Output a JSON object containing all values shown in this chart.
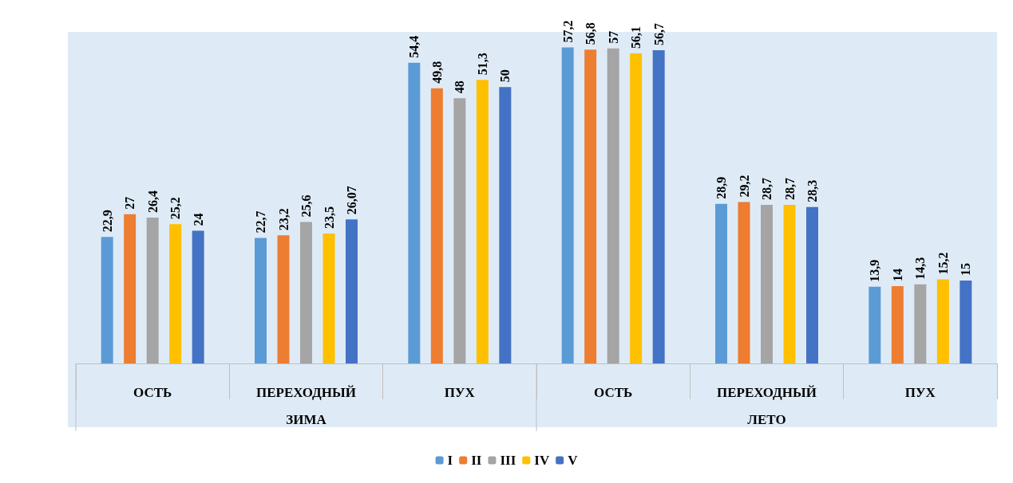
{
  "chart_data": {
    "type": "bar",
    "categories": [
      "ОСТЬ",
      "ПЕРЕХОДНЫЙ",
      "ПУХ",
      "ОСТЬ",
      "ПЕРЕХОДНЫЙ",
      "ПУХ"
    ],
    "annotations": [
      "ЗИМА",
      "ЛЕТО"
    ],
    "series": [
      {
        "name": "I",
        "color": "#5b9bd5",
        "values": [
          22.9,
          22.7,
          54.4,
          57.2,
          28.9,
          13.9
        ],
        "value_labels": [
          "22,9",
          "22,7",
          "54,4",
          "57,2",
          "28,9",
          "13,9"
        ]
      },
      {
        "name": "II",
        "color": "#ed7d31",
        "values": [
          27,
          23.2,
          49.8,
          56.8,
          29.2,
          14
        ],
        "value_labels": [
          "27",
          "23,2",
          "49,8",
          "56,8",
          "29,2",
          "14"
        ]
      },
      {
        "name": "III",
        "color": "#a5a5a5",
        "values": [
          26.4,
          25.6,
          48,
          57,
          28.7,
          14.3
        ],
        "value_labels": [
          "26,4",
          "25,6",
          "48",
          "57",
          "28,7",
          "14,3"
        ]
      },
      {
        "name": "IV",
        "color": "#ffc000",
        "values": [
          25.2,
          23.5,
          51.3,
          56.1,
          28.7,
          15.2
        ],
        "value_labels": [
          "25,2",
          "23,5",
          "51,3",
          "56,1",
          "28,7",
          "15,2"
        ]
      },
      {
        "name": "V",
        "color": "#4472c4",
        "values": [
          24,
          26.07,
          50,
          56.7,
          28.3,
          15
        ],
        "value_labels": [
          "24",
          "26,07",
          "50",
          "56,7",
          "28,3",
          "15"
        ]
      }
    ],
    "grid": false,
    "legend": "bottom"
  }
}
